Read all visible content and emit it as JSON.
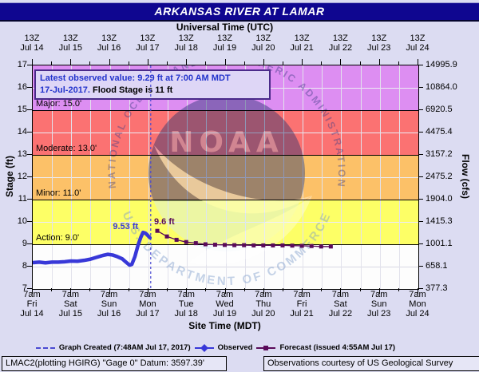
{
  "title": "ARKANSAS RIVER AT LAMAR",
  "annotation": {
    "line1": "Latest observed value: 9.29 ft at 7:00 AM MDT",
    "line2_date": "17-Jul-2017.",
    "line2_rest": "Flood Stage is 11 ft"
  },
  "legend": {
    "created": "Graph Created (7:48AM Jul 17, 2017)",
    "observed": "Observed",
    "forecast": "Forecast (issued 4:55AM Jul 17)"
  },
  "footer": {
    "left": "LMAC2(plotting HGIRG) \"Gage 0\" Datum: 3597.39'",
    "right": "Observations courtesy of US Geological Survey"
  },
  "watermark": {
    "ring_top": "NATIONAL OCEANIC AND ATMOSPHERIC ADMINISTRATION",
    "ring_bottom": "U.S. DEPARTMENT OF COMMERCE",
    "center_text": "NOAA"
  },
  "colors": {
    "page_bg": "#dcdcf2",
    "titlebar_bg": "#0f0690",
    "titlebar_text": "#ffffff",
    "observed": "#3838d8",
    "forecast": "#5a0b5a",
    "created_line": "#4a4ad2",
    "annotation_bg": "#ded6f6",
    "annotation_border": "#4a2a8a",
    "annotation_blue": "#2233cc"
  },
  "chart_data": {
    "type": "line",
    "title": "ARKANSAS RIVER AT LAMAR",
    "stage_axis": {
      "label": "Stage (ft)",
      "range": [
        7,
        17
      ],
      "ticks": [
        17,
        16,
        15,
        14,
        13,
        12,
        11,
        10,
        9,
        8,
        7
      ]
    },
    "flow_axis": {
      "label": "Flow (cfs)",
      "ticks": [
        "14995.9",
        "10864.0",
        "6920.5",
        "4475.4",
        "3157.2",
        "2475.2",
        "1904.0",
        "1415.3",
        "1001.1",
        "658.1",
        "377.3"
      ]
    },
    "utc_axis": {
      "label": "Universal Time (UTC)",
      "hour": "13Z",
      "dates": [
        "Jul 14",
        "Jul 15",
        "Jul 16",
        "Jul 17",
        "Jul 18",
        "Jul 19",
        "Jul 20",
        "Jul 21",
        "Jul 22",
        "Jul 23",
        "Jul 24"
      ]
    },
    "site_axis": {
      "label": "Site Time (MDT)",
      "hour": "7am",
      "dow": [
        "Fri",
        "Sat",
        "Sun",
        "Mon",
        "Tue",
        "Wed",
        "Thu",
        "Fri",
        "Sat",
        "Sun",
        "Mon"
      ],
      "dates": [
        "Jul 14",
        "Jul 15",
        "Jul 16",
        "Jul 17",
        "Jul 18",
        "Jul 19",
        "Jul 20",
        "Jul 21",
        "Jul 22",
        "Jul 23",
        "Jul 24"
      ]
    },
    "flood_zones": [
      {
        "name": "Major",
        "label": "Major: 15.0'",
        "from": 15,
        "to": 17,
        "color": "#dd8ef2"
      },
      {
        "name": "Moderate",
        "label": "Moderate: 13.0'",
        "from": 13,
        "to": 15,
        "color": "#fb7272"
      },
      {
        "name": "Minor",
        "label": "Minor: 11.0'",
        "from": 11,
        "to": 13,
        "color": "#fcc168"
      },
      {
        "name": "Action",
        "label": "Action: 9.0'",
        "from": 9,
        "to": 11,
        "color": "#fdff66"
      }
    ],
    "flood_stage_ft": 11,
    "series": [
      {
        "name": "Observed",
        "color": "#3838d8",
        "marker": "diamond",
        "peak_label": "9.53 ft",
        "points": [
          [
            0,
            8.18
          ],
          [
            0.17,
            8.2
          ],
          [
            0.33,
            8.17
          ],
          [
            0.5,
            8.2
          ],
          [
            0.66,
            8.2
          ],
          [
            0.83,
            8.22
          ],
          [
            0.99,
            8.25
          ],
          [
            1.16,
            8.24
          ],
          [
            1.33,
            8.28
          ],
          [
            1.49,
            8.33
          ],
          [
            1.66,
            8.42
          ],
          [
            1.82,
            8.5
          ],
          [
            1.95,
            8.55
          ],
          [
            2.07,
            8.52
          ],
          [
            2.19,
            8.45
          ],
          [
            2.32,
            8.35
          ],
          [
            2.42,
            8.2
          ],
          [
            2.51,
            8.07
          ],
          [
            2.57,
            8.1
          ],
          [
            2.65,
            8.45
          ],
          [
            2.73,
            8.95
          ],
          [
            2.8,
            9.3
          ],
          [
            2.86,
            9.53
          ],
          [
            2.92,
            9.5
          ],
          [
            2.98,
            9.4
          ],
          [
            3.04,
            9.29
          ]
        ]
      },
      {
        "name": "Forecast",
        "color": "#5a0b5a",
        "marker": "square",
        "start_label": "9.6 ft",
        "points": [
          [
            3.23,
            9.6
          ],
          [
            3.48,
            9.35
          ],
          [
            3.73,
            9.2
          ],
          [
            3.98,
            9.1
          ],
          [
            4.23,
            9.05
          ],
          [
            4.48,
            9.0
          ],
          [
            4.73,
            8.98
          ],
          [
            4.98,
            8.97
          ],
          [
            5.23,
            8.96
          ],
          [
            5.48,
            8.96
          ],
          [
            5.73,
            8.95
          ],
          [
            5.98,
            8.95
          ],
          [
            6.23,
            8.95
          ],
          [
            6.48,
            8.95
          ],
          [
            6.73,
            8.94
          ],
          [
            6.98,
            8.93
          ],
          [
            7.23,
            8.92
          ],
          [
            7.48,
            8.9
          ],
          [
            7.73,
            8.9
          ]
        ]
      }
    ],
    "graph_created": {
      "day": 3.06,
      "style": "dashed"
    },
    "grid": "on",
    "legend_position": "bottom"
  }
}
